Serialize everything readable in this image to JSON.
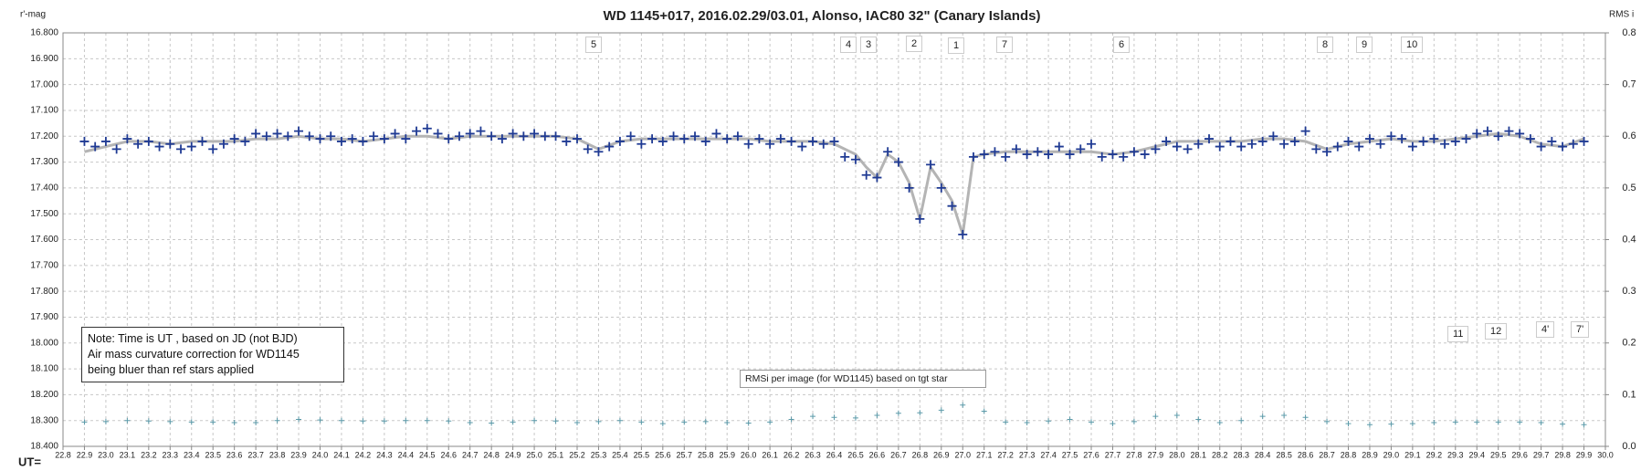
{
  "chart_data": {
    "type": "scatter",
    "title": "WD 1145+017,  2016.02.29/03.01,  Alonso,  IAC80  32\" (Canary Islands)",
    "y_label": "r'-mag",
    "y2_label": "RMS i",
    "x_label": "UT=",
    "y_inverted": true,
    "grid": true,
    "xlim": [
      22.8,
      30.0
    ],
    "ylim": [
      16.8,
      18.4
    ],
    "y2lim": [
      0,
      0.8
    ],
    "xticks": [
      22.8,
      22.9,
      {
        "value": 23,
        "label": "23.0"
      },
      23.1,
      23.2,
      23.3,
      23.4,
      23.5,
      23.6,
      23.7,
      23.8,
      23.9,
      {
        "value": 24,
        "label": "24.0"
      },
      24.1,
      24.2,
      24.3,
      24.4,
      24.5,
      24.6,
      24.7,
      24.8,
      24.9,
      {
        "value": 25,
        "label": "25.0"
      },
      25.1,
      25.2,
      25.3,
      25.4,
      25.5,
      25.6,
      25.7,
      25.8,
      25.9,
      {
        "value": 26,
        "label": "26.0"
      },
      26.1,
      26.2,
      26.3,
      26.4,
      26.5,
      26.6,
      26.7,
      26.8,
      26.9,
      {
        "value": 27,
        "label": "27.0"
      },
      27.1,
      27.2,
      27.3,
      27.4,
      27.5,
      27.6,
      27.7,
      27.8,
      27.9,
      {
        "value": 28,
        "label": "28.0"
      },
      28.1,
      28.2,
      28.3,
      28.4,
      28.5,
      28.6,
      28.7,
      28.8,
      28.9,
      {
        "value": 29,
        "label": "29.0"
      },
      29.1,
      29.2,
      29.3,
      29.4,
      29.5,
      29.6,
      29.7,
      29.8,
      29.9,
      {
        "value": 30,
        "label": "30.0"
      }
    ],
    "yticks": [
      {
        "value": 16.8,
        "label": "16.800"
      },
      {
        "value": 16.9,
        "label": "16.900"
      },
      {
        "value": 17,
        "label": "17.000"
      },
      {
        "value": 17.1,
        "label": "17.100"
      },
      {
        "value": 17.2,
        "label": "17.200"
      },
      {
        "value": 17.3,
        "label": "17.300"
      },
      {
        "value": 17.4,
        "label": "17.400"
      },
      {
        "value": 17.5,
        "label": "17.500"
      },
      {
        "value": 17.6,
        "label": "17.600"
      },
      {
        "value": 17.7,
        "label": "17.700"
      },
      {
        "value": 17.8,
        "label": "17.800"
      },
      {
        "value": 17.9,
        "label": "17.900"
      },
      {
        "value": 18,
        "label": "18.000"
      },
      {
        "value": 18.1,
        "label": "18.100"
      },
      {
        "value": 18.2,
        "label": "18.200"
      },
      {
        "value": 18.3,
        "label": "18.300"
      },
      {
        "value": 18.4,
        "label": "18.400"
      }
    ],
    "y2ticks": [
      {
        "value": 0,
        "label": "0.0"
      },
      0.1,
      0.2,
      0.3,
      0.4,
      0.5,
      0.6,
      0.7,
      0.8
    ],
    "series": [
      {
        "type": "line",
        "color": "#b4b4b4",
        "x": [
          22.9,
          23.0,
          23.1,
          23.2,
          23.3,
          23.4,
          23.5,
          23.6,
          23.7,
          23.8,
          23.9,
          24.0,
          24.1,
          24.2,
          24.3,
          24.4,
          24.5,
          24.6,
          24.7,
          24.8,
          24.9,
          25.0,
          25.1,
          25.2,
          25.3,
          25.4,
          25.5,
          25.6,
          25.7,
          25.8,
          25.9,
          26.0,
          26.1,
          26.2,
          26.3,
          26.4,
          26.5,
          26.55,
          26.6,
          26.65,
          26.7,
          26.75,
          26.8,
          26.85,
          26.9,
          26.95,
          27.0,
          27.05,
          27.1,
          27.2,
          27.3,
          27.4,
          27.5,
          27.6,
          27.7,
          27.8,
          27.9,
          28.0,
          28.1,
          28.2,
          28.3,
          28.4,
          28.5,
          28.6,
          28.7,
          28.8,
          28.9,
          29.0,
          29.1,
          29.2,
          29.3,
          29.4,
          29.5,
          29.6,
          29.7,
          29.8,
          29.9
        ],
        "values": [
          17.26,
          17.24,
          17.22,
          17.22,
          17.23,
          17.22,
          17.22,
          17.22,
          17.21,
          17.21,
          17.2,
          17.21,
          17.21,
          17.22,
          17.21,
          17.2,
          17.2,
          17.21,
          17.2,
          17.2,
          17.2,
          17.2,
          17.2,
          17.21,
          17.25,
          17.22,
          17.21,
          17.21,
          17.21,
          17.21,
          17.21,
          17.21,
          17.22,
          17.22,
          17.22,
          17.23,
          17.27,
          17.32,
          17.36,
          17.27,
          17.3,
          17.38,
          17.52,
          17.32,
          17.38,
          17.45,
          17.58,
          17.28,
          17.27,
          17.26,
          17.26,
          17.26,
          17.26,
          17.26,
          17.27,
          17.26,
          17.24,
          17.22,
          17.22,
          17.22,
          17.22,
          17.21,
          17.21,
          17.22,
          17.25,
          17.23,
          17.22,
          17.21,
          17.22,
          17.22,
          17.21,
          17.2,
          17.19,
          17.2,
          17.23,
          17.24,
          17.21
        ]
      },
      {
        "type": "scatter",
        "color": "#1f3a93",
        "x": [
          22.9,
          22.95,
          23.0,
          23.05,
          23.1,
          23.15,
          23.2,
          23.25,
          23.3,
          23.35,
          23.4,
          23.45,
          23.5,
          23.55,
          23.6,
          23.65,
          23.7,
          23.75,
          23.8,
          23.85,
          23.9,
          23.95,
          24.0,
          24.05,
          24.1,
          24.15,
          24.2,
          24.25,
          24.3,
          24.35,
          24.4,
          24.45,
          24.5,
          24.55,
          24.6,
          24.65,
          24.7,
          24.75,
          24.8,
          24.85,
          24.9,
          24.95,
          25.0,
          25.05,
          25.1,
          25.15,
          25.2,
          25.25,
          25.3,
          25.35,
          25.4,
          25.45,
          25.5,
          25.55,
          25.6,
          25.65,
          25.7,
          25.75,
          25.8,
          25.85,
          25.9,
          25.95,
          26.0,
          26.05,
          26.1,
          26.15,
          26.2,
          26.25,
          26.3,
          26.35,
          26.4,
          26.45,
          26.5,
          26.55,
          26.6,
          26.65,
          26.7,
          26.75,
          26.8,
          26.85,
          26.9,
          26.95,
          27.0,
          27.05,
          27.1,
          27.15,
          27.2,
          27.25,
          27.3,
          27.35,
          27.4,
          27.45,
          27.5,
          27.55,
          27.6,
          27.65,
          27.7,
          27.75,
          27.8,
          27.85,
          27.9,
          27.95,
          28.0,
          28.05,
          28.1,
          28.15,
          28.2,
          28.25,
          28.3,
          28.35,
          28.4,
          28.45,
          28.5,
          28.55,
          28.6,
          28.65,
          28.7,
          28.75,
          28.8,
          28.85,
          28.9,
          28.95,
          29.0,
          29.05,
          29.1,
          29.15,
          29.2,
          29.25,
          29.3,
          29.35,
          29.4,
          29.45,
          29.5,
          29.55,
          29.6,
          29.65,
          29.7,
          29.75,
          29.8,
          29.85,
          29.9
        ],
        "values": [
          17.22,
          17.24,
          17.22,
          17.25,
          17.21,
          17.23,
          17.22,
          17.24,
          17.23,
          17.25,
          17.24,
          17.22,
          17.25,
          17.23,
          17.21,
          17.22,
          17.19,
          17.2,
          17.19,
          17.2,
          17.18,
          17.2,
          17.21,
          17.2,
          17.22,
          17.21,
          17.22,
          17.2,
          17.21,
          17.19,
          17.21,
          17.18,
          17.17,
          17.19,
          17.21,
          17.2,
          17.19,
          17.18,
          17.2,
          17.21,
          17.19,
          17.2,
          17.19,
          17.2,
          17.2,
          17.22,
          17.21,
          17.25,
          17.26,
          17.24,
          17.22,
          17.2,
          17.23,
          17.21,
          17.22,
          17.2,
          17.21,
          17.2,
          17.22,
          17.19,
          17.21,
          17.2,
          17.23,
          17.21,
          17.23,
          17.21,
          17.22,
          17.24,
          17.22,
          17.23,
          17.22,
          17.28,
          17.29,
          17.35,
          17.36,
          17.26,
          17.3,
          17.4,
          17.52,
          17.31,
          17.4,
          17.47,
          17.58,
          17.28,
          17.27,
          17.26,
          17.28,
          17.25,
          17.27,
          17.26,
          17.27,
          17.24,
          17.27,
          17.25,
          17.23,
          17.28,
          17.27,
          17.28,
          17.26,
          17.27,
          17.25,
          17.22,
          17.24,
          17.25,
          17.23,
          17.21,
          17.24,
          17.22,
          17.24,
          17.23,
          17.22,
          17.2,
          17.23,
          17.22,
          17.18,
          17.25,
          17.26,
          17.24,
          17.22,
          17.24,
          17.21,
          17.23,
          17.2,
          17.21,
          17.24,
          17.22,
          17.21,
          17.23,
          17.22,
          17.21,
          17.19,
          17.18,
          17.2,
          17.18,
          17.19,
          17.21,
          17.24,
          17.22,
          17.24,
          17.23,
          17.22
        ]
      },
      {
        "type": "scatter",
        "axis": "y2",
        "color": "#5b9aa9",
        "x": [
          22.9,
          23.0,
          23.1,
          23.2,
          23.3,
          23.4,
          23.5,
          23.6,
          23.7,
          23.8,
          23.9,
          24.0,
          24.1,
          24.2,
          24.3,
          24.4,
          24.5,
          24.6,
          24.7,
          24.8,
          24.9,
          25.0,
          25.1,
          25.2,
          25.3,
          25.4,
          25.5,
          25.6,
          25.7,
          25.8,
          25.9,
          26.0,
          26.1,
          26.2,
          26.3,
          26.4,
          26.5,
          26.6,
          26.7,
          26.8,
          26.9,
          27.0,
          27.1,
          27.2,
          27.3,
          27.4,
          27.5,
          27.6,
          27.7,
          27.8,
          27.9,
          28.0,
          28.1,
          28.2,
          28.3,
          28.4,
          28.5,
          28.6,
          28.7,
          28.8,
          28.9,
          29.0,
          29.1,
          29.2,
          29.3,
          29.4,
          29.5,
          29.6,
          29.7,
          29.8,
          29.9
        ],
        "values": [
          0.047,
          0.048,
          0.05,
          0.049,
          0.048,
          0.047,
          0.047,
          0.046,
          0.046,
          0.05,
          0.052,
          0.051,
          0.05,
          0.049,
          0.049,
          0.05,
          0.05,
          0.049,
          0.046,
          0.045,
          0.047,
          0.05,
          0.049,
          0.046,
          0.048,
          0.05,
          0.047,
          0.044,
          0.047,
          0.048,
          0.046,
          0.045,
          0.047,
          0.052,
          0.058,
          0.056,
          0.055,
          0.06,
          0.064,
          0.065,
          0.07,
          0.08,
          0.068,
          0.047,
          0.046,
          0.049,
          0.052,
          0.047,
          0.044,
          0.048,
          0.058,
          0.06,
          0.052,
          0.046,
          0.05,
          0.058,
          0.06,
          0.056,
          0.048,
          0.044,
          0.042,
          0.043,
          0.044,
          0.046,
          0.047,
          0.047,
          0.047,
          0.047,
          0.046,
          0.043,
          0.042
        ]
      }
    ],
    "annotations": [
      "5",
      "4",
      "3",
      "2",
      "1",
      "7",
      "6",
      "8",
      "9",
      "10",
      "11",
      "12",
      "4'",
      "7'"
    ],
    "note": [
      "Note: Time is UT , based on JD (not BJD)",
      "Air mass  curvature correction for WD1145",
      "being bluer than ref stars applied"
    ],
    "rms_note": "RMSi per image (for WD1145) based on tgt star"
  }
}
